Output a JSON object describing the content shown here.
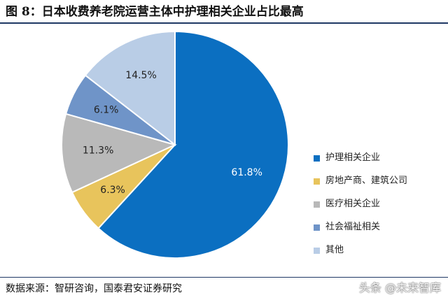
{
  "figure": {
    "title": "图 8：日本收费养老院运营主体中护理相关企业占比最高",
    "source": "数据来源：智研咨询，国泰君安证券研究",
    "watermark": "头条 @未来智库"
  },
  "chart_data": {
    "type": "pie",
    "title": "",
    "legend_position": "right",
    "slices": [
      {
        "label": "护理相关企业",
        "value": 61.8,
        "display": "61.8%",
        "color": "#0b6fc1"
      },
      {
        "label": "房地产商、建筑公司",
        "value": 6.3,
        "display": "6.3%",
        "color": "#e8c45c"
      },
      {
        "label": "医疗相关企业",
        "value": 11.3,
        "display": "11.3%",
        "color": "#b9b9b9"
      },
      {
        "label": "社会福祉相关",
        "value": 6.1,
        "display": "6.1%",
        "color": "#6f94c8"
      },
      {
        "label": "其他",
        "value": 14.5,
        "display": "14.5%",
        "color": "#b9cde6"
      }
    ]
  }
}
